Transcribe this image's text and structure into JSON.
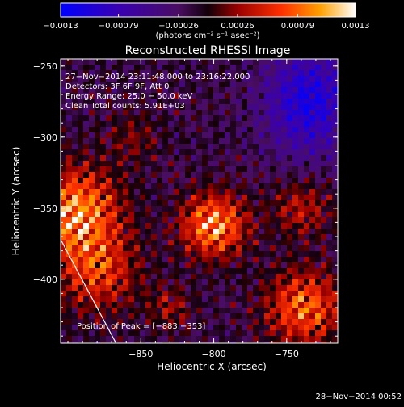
{
  "chart_data": {
    "type": "heatmap",
    "title": "Reconstructed RHESSI Image",
    "xlabel": "Heliocentric X (arcsec)",
    "ylabel": "Heliocentric Y (arcsec)",
    "xlim": [
      -905,
      -715
    ],
    "ylim": [
      -445,
      -245
    ],
    "xticks": [
      -850,
      -800,
      -750
    ],
    "xtick_labels": [
      "−850",
      "−800",
      "−750"
    ],
    "yticks": [
      -250,
      -300,
      -350,
      -400
    ],
    "ytick_labels": [
      "−250",
      "−300",
      "−350",
      "−400"
    ],
    "colorbar": {
      "range": [
        -0.0013,
        0.0013
      ],
      "ticks": [
        -0.0013,
        -0.00079,
        -0.00026,
        0.00026,
        0.00079,
        0.0013
      ],
      "tick_labels": [
        "−0.0013",
        "−0.00079",
        "−0.00026",
        "0.00026",
        "0.00079",
        "0.0013"
      ],
      "unit_label": "(photons cm⁻² s⁻¹ asec⁻²)"
    },
    "annotations": [
      "27−Nov−2014 23:11:48.000 to 23:16:22.000",
      "Detectors: 3F 6F 9F, Att 0",
      "Energy Range: 25.0 − 50.0 keV",
      "Clean     Total counts: 5.91E+03"
    ],
    "peak_label": "Position of Peak = [−883,−353]",
    "peak": [
      -883,
      -353
    ],
    "limb_line": {
      "from": [
        -905,
        -372
      ],
      "to": [
        -867,
        -445
      ]
    }
  },
  "footer": {
    "timestamp": "28−Nov−2014 00:52"
  },
  "colors": {
    "background": "#000000",
    "foreground": "#ffffff"
  }
}
